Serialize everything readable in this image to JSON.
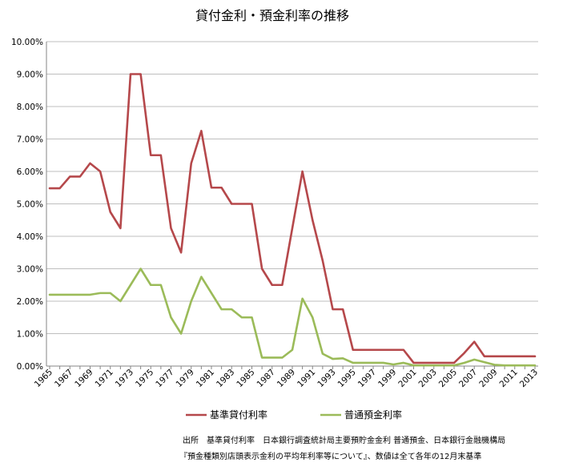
{
  "chart_data": {
    "type": "line",
    "title": "貸付金利・預金利率の推移",
    "xlabel": "",
    "ylabel": "",
    "ylim": [
      0,
      10
    ],
    "y_ticks": [
      "0.00%",
      "1.00%",
      "2.00%",
      "3.00%",
      "4.00%",
      "5.00%",
      "6.00%",
      "7.00%",
      "8.00%",
      "9.00%",
      "10.00%"
    ],
    "x": [
      1965,
      1966,
      1967,
      1968,
      1969,
      1970,
      1971,
      1972,
      1973,
      1974,
      1975,
      1976,
      1977,
      1978,
      1979,
      1980,
      1981,
      1982,
      1983,
      1984,
      1985,
      1986,
      1987,
      1988,
      1989,
      1990,
      1991,
      1992,
      1993,
      1994,
      1995,
      1996,
      1997,
      1998,
      1999,
      2000,
      2001,
      2002,
      2003,
      2004,
      2005,
      2006,
      2007,
      2008,
      2009,
      2010,
      2011,
      2012,
      2013
    ],
    "x_tick_labels": [
      "1965",
      "1967",
      "1969",
      "1971",
      "1973",
      "1975",
      "1977",
      "1979",
      "1981",
      "1983",
      "1985",
      "1987",
      "1989",
      "1991",
      "1993",
      "1995",
      "1997",
      "1999",
      "2001",
      "2003",
      "2005",
      "2007",
      "2009",
      "2011",
      "2013"
    ],
    "grid": true,
    "legend_position": "bottom",
    "series": [
      {
        "name": "基準貸付利率",
        "color": "#b5484b",
        "values": [
          5.48,
          5.48,
          5.84,
          5.84,
          6.25,
          6.0,
          4.75,
          4.25,
          9.0,
          9.0,
          6.5,
          6.5,
          4.25,
          3.5,
          6.25,
          7.25,
          5.5,
          5.5,
          5.0,
          5.0,
          5.0,
          3.0,
          2.5,
          2.5,
          4.25,
          6.0,
          4.5,
          3.25,
          1.75,
          1.75,
          0.5,
          0.5,
          0.5,
          0.5,
          0.5,
          0.5,
          0.1,
          0.1,
          0.1,
          0.1,
          0.1,
          0.4,
          0.75,
          0.3,
          0.3,
          0.3,
          0.3,
          0.3,
          0.3
        ]
      },
      {
        "name": "普通預金利率",
        "color": "#9bbb59",
        "values": [
          2.2,
          2.2,
          2.2,
          2.2,
          2.2,
          2.25,
          2.25,
          2.0,
          2.5,
          3.0,
          2.5,
          2.5,
          1.5,
          1.0,
          2.0,
          2.75,
          2.25,
          1.75,
          1.75,
          1.5,
          1.5,
          0.26,
          0.26,
          0.26,
          0.5,
          2.08,
          1.5,
          0.38,
          0.22,
          0.24,
          0.1,
          0.1,
          0.1,
          0.1,
          0.05,
          0.1,
          0.02,
          0.02,
          0.02,
          0.02,
          0.02,
          0.1,
          0.2,
          0.12,
          0.04,
          0.02,
          0.02,
          0.02,
          0.02
        ]
      }
    ]
  },
  "source_line": "出所　基準貸付利率　日本銀行調査統計局主要預貯金金利 普通預金、日本銀行金融機構局",
  "note_line": "『預金種類別店頭表示金利の平均年利率等について』、数値は全て各年の12月末基準"
}
